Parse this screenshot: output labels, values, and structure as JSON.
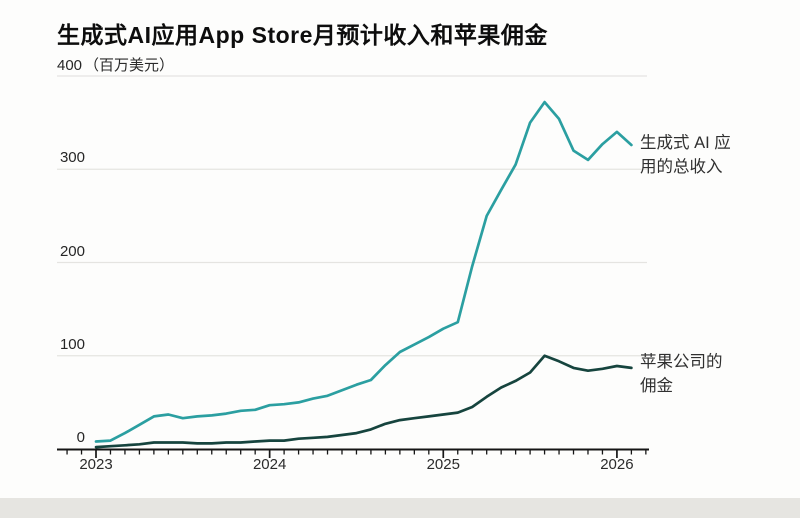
{
  "header": {
    "title": "生成式AI应用App Store月预计收入和苹果佣金"
  },
  "chart_data": {
    "type": "line",
    "title": "生成式AI应用App Store月预计收入和苹果佣金",
    "ylabel": "百万美元",
    "y_axis_unit_label": "（百万美元）",
    "y_ticks": [
      0,
      100,
      200,
      300,
      400
    ],
    "ylim": [
      0,
      400
    ],
    "grid": "horizontal",
    "legend_position": "right-annotations",
    "x_year_labels": [
      "2023",
      "2024",
      "2025",
      "2026"
    ],
    "x": [
      "2023-01",
      "2023-02",
      "2023-03",
      "2023-04",
      "2023-05",
      "2023-06",
      "2023-07",
      "2023-08",
      "2023-09",
      "2023-10",
      "2023-11",
      "2023-12",
      "2024-01",
      "2024-02",
      "2024-03",
      "2024-04",
      "2024-05",
      "2024-06",
      "2024-07",
      "2024-08",
      "2024-09",
      "2024-10",
      "2024-11",
      "2024-12",
      "2025-01",
      "2025-02",
      "2025-03",
      "2025-04",
      "2025-05",
      "2025-06",
      "2025-07",
      "2025-08",
      "2025-09",
      "2025-10",
      "2025-11",
      "2025-12",
      "2026-01",
      "2026-02"
    ],
    "series": [
      {
        "name": "生成式 AI 应用的总收入",
        "color": "#2b9fa1",
        "values": [
          8,
          9,
          17,
          26,
          35,
          37,
          33,
          35,
          36,
          38,
          41,
          42,
          47,
          48,
          50,
          54,
          57,
          63,
          69,
          74,
          90,
          104,
          112,
          120,
          129,
          136,
          196,
          250,
          278,
          305,
          350,
          372,
          354,
          320,
          310,
          327,
          340,
          326
        ]
      },
      {
        "name": "苹果公司的佣金",
        "color": "#16443e",
        "values": [
          2,
          3,
          4,
          5,
          7,
          7,
          7,
          6,
          6,
          7,
          7,
          8,
          9,
          9,
          11,
          12,
          13,
          15,
          17,
          21,
          27,
          31,
          33,
          35,
          37,
          39,
          45,
          56,
          66,
          73,
          82,
          100,
          94,
          87,
          84,
          86,
          89,
          87
        ]
      }
    ],
    "series_labels": [
      {
        "line1": "生成式 AI 应",
        "line2": "用的总收入"
      },
      {
        "line1": "苹果公司的",
        "line2": "佣金"
      }
    ]
  }
}
